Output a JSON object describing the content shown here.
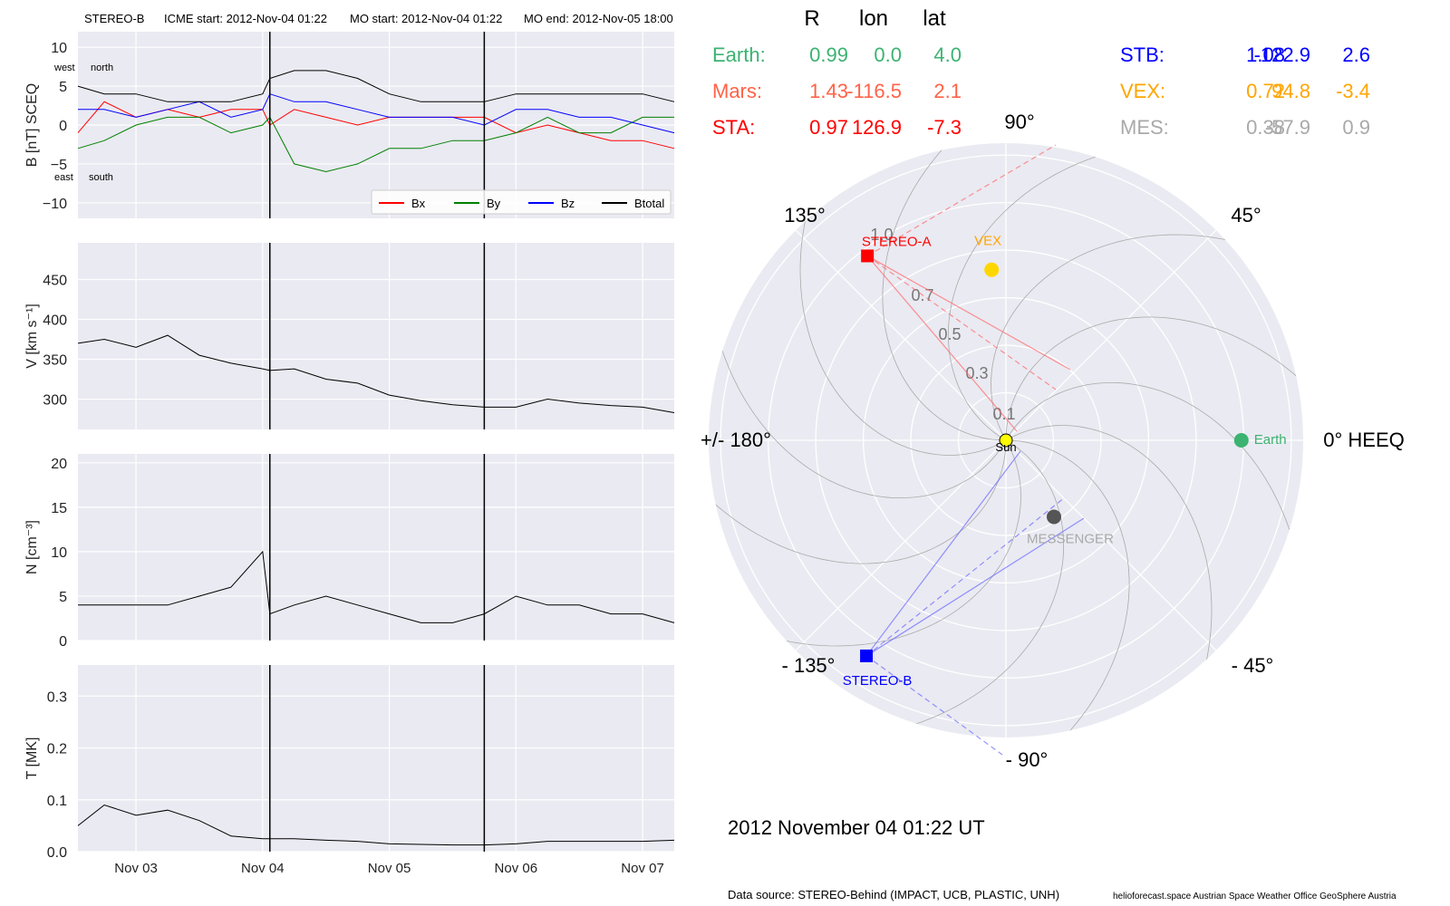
{
  "header": {
    "spacecraft": "STEREO-B",
    "icme_start": "ICME start: 2012-Nov-04 01:22",
    "mo_start": "MO start: 2012-Nov-04 01:22",
    "mo_end": "MO end: 2012-Nov-05 18:00"
  },
  "colors": {
    "earth": "#3cb371",
    "mars": "#ff6347",
    "sta": "#ff0000",
    "stb": "#0000ff",
    "vex": "#ffa500",
    "vex_marker": "#ffd700",
    "mes": "#a9a9a9",
    "mes_marker": "#555555",
    "panel_bg": "#eaeaf2",
    "bx": "#ff0000",
    "by": "#008000",
    "bz": "#0000ff",
    "btotal": "#000000"
  },
  "positions_table": {
    "headers": [
      "R",
      "lon",
      "lat"
    ],
    "rows": [
      {
        "name": "Earth:",
        "R": "0.99",
        "lon": "0.0",
        "lat": "4.0",
        "color_key": "earth"
      },
      {
        "name": "Mars:",
        "R": "1.43",
        "lon": "-116.5",
        "lat": "2.1",
        "color_key": "mars"
      },
      {
        "name": "STA:",
        "R": "0.97",
        "lon": "126.9",
        "lat": "-7.3",
        "color_key": "sta"
      },
      {
        "name": "STB:",
        "R": "1.08",
        "lon": "-122.9",
        "lat": "2.6",
        "color_key": "stb"
      },
      {
        "name": "VEX:",
        "R": "0.72",
        "lon": "94.8",
        "lat": "-3.4",
        "color_key": "vex"
      },
      {
        "name": "MES:",
        "R": "0.38",
        "lon": "-57.9",
        "lat": "0.9",
        "color_key": "mes"
      }
    ]
  },
  "polar": {
    "angle_labels": [
      "90°",
      "135°",
      "45°",
      "+/- 180°",
      "0° HEEQ",
      "- 135°",
      "- 45°",
      "- 90°"
    ],
    "radial_labels": [
      "0.1",
      "0.3",
      "0.5",
      "0.7",
      "1.0"
    ],
    "sun_label": "Sun",
    "bodies": [
      {
        "label": "Earth",
        "r": 0.99,
        "lon": 0.0,
        "marker": "circle",
        "color_key": "earth"
      },
      {
        "label": "VEX",
        "r": 0.72,
        "lon": 94.8,
        "marker": "circle",
        "color_key": "vex_marker",
        "label_color_key": "vex"
      },
      {
        "label": "MESSENGER",
        "r": 0.38,
        "lon": -57.9,
        "marker": "circle",
        "color_key": "mes_marker",
        "label_color_key": "mes"
      },
      {
        "label": "STEREO-A",
        "r": 0.97,
        "lon": 126.9,
        "marker": "square",
        "color_key": "sta"
      },
      {
        "label": "STEREO-B",
        "r": 1.08,
        "lon": -122.9,
        "marker": "square",
        "color_key": "stb"
      }
    ]
  },
  "date_label": "2012 November 04  01:22 UT",
  "footer": {
    "source": "Data source: STEREO-Behind (IMPACT, UCB, PLASTIC, UNH)",
    "credits": "helioforecast.space   Austrian Space Weather Office   GeoSphere Austria"
  },
  "chart_data": [
    {
      "type": "line",
      "id": "mag",
      "ylabel": "B [nT] SCEQ",
      "ylim": [
        -12,
        12
      ],
      "yticks": [
        10,
        5,
        0,
        -5,
        -10
      ],
      "ytick_labels": [
        "10",
        "5",
        "0",
        "−5",
        "−10"
      ],
      "corner_labels": {
        "top": [
          "west",
          "north"
        ],
        "bottom": [
          "east",
          "south"
        ]
      },
      "legend_placement": "lower-right",
      "x_range_days": [
        "2012-11-02 13:00",
        "2012-11-07 06:00"
      ],
      "event_lines": [
        "2012-11-04 01:22",
        "2012-11-05 18:00"
      ],
      "x": [
        "2012-11-02 13:00",
        "2012-11-02 18:00",
        "2012-11-03 00:00",
        "2012-11-03 06:00",
        "2012-11-03 12:00",
        "2012-11-03 18:00",
        "2012-11-04 00:00",
        "2012-11-04 01:22",
        "2012-11-04 06:00",
        "2012-11-04 12:00",
        "2012-11-04 18:00",
        "2012-11-05 00:00",
        "2012-11-05 06:00",
        "2012-11-05 12:00",
        "2012-11-05 18:00",
        "2012-11-06 00:00",
        "2012-11-06 06:00",
        "2012-11-06 12:00",
        "2012-11-06 18:00",
        "2012-11-07 00:00",
        "2012-11-07 06:00"
      ],
      "series": [
        {
          "name": "Bx",
          "color_key": "bx",
          "values": [
            -1,
            3,
            1,
            2,
            1,
            2,
            2,
            0,
            2,
            1,
            0,
            1,
            1,
            1,
            1,
            -1,
            0,
            -1,
            -2,
            -2,
            -3
          ]
        },
        {
          "name": "By",
          "color_key": "by",
          "values": [
            -3,
            -2,
            0,
            1,
            1,
            -1,
            0,
            1,
            -5,
            -6,
            -5,
            -3,
            -3,
            -2,
            -2,
            -1,
            1,
            -1,
            -1,
            1,
            1
          ]
        },
        {
          "name": "Bz",
          "color_key": "bz",
          "values": [
            2,
            2,
            1,
            2,
            3,
            1,
            2,
            4,
            3,
            3,
            2,
            1,
            1,
            1,
            0,
            2,
            2,
            1,
            1,
            0,
            -1
          ]
        },
        {
          "name": "Btotal",
          "color_key": "btotal",
          "values": [
            5,
            4,
            4,
            3,
            3,
            3,
            4,
            6,
            7,
            7,
            6,
            4,
            3,
            3,
            3,
            4,
            4,
            4,
            4,
            4,
            3
          ]
        }
      ]
    },
    {
      "type": "line",
      "id": "speed",
      "ylabel": "V [km s⁻¹]",
      "ylim": [
        262,
        496
      ],
      "yticks": [
        450,
        400,
        350,
        300
      ],
      "ytick_labels": [
        "450",
        "400",
        "350",
        "300"
      ],
      "x_range_days": [
        "2012-11-02 13:00",
        "2012-11-07 06:00"
      ],
      "event_lines": [
        "2012-11-04 01:22",
        "2012-11-05 18:00"
      ],
      "x": [
        "2012-11-02 13:00",
        "2012-11-02 18:00",
        "2012-11-03 00:00",
        "2012-11-03 06:00",
        "2012-11-03 12:00",
        "2012-11-03 18:00",
        "2012-11-04 00:00",
        "2012-11-04 01:22",
        "2012-11-04 06:00",
        "2012-11-04 12:00",
        "2012-11-04 18:00",
        "2012-11-05 00:00",
        "2012-11-05 06:00",
        "2012-11-05 12:00",
        "2012-11-05 18:00",
        "2012-11-06 00:00",
        "2012-11-06 06:00",
        "2012-11-06 12:00",
        "2012-11-06 18:00",
        "2012-11-07 00:00",
        "2012-11-07 06:00"
      ],
      "series": [
        {
          "name": "V",
          "values": [
            370,
            375,
            365,
            380,
            355,
            345,
            338,
            336,
            338,
            325,
            320,
            305,
            298,
            293,
            290,
            290,
            300,
            295,
            292,
            290,
            283
          ]
        }
      ]
    },
    {
      "type": "line",
      "id": "density",
      "ylabel": "N [cm⁻³]",
      "ylim": [
        0,
        21
      ],
      "yticks": [
        20,
        15,
        10,
        5,
        0
      ],
      "ytick_labels": [
        "20",
        "15",
        "10",
        "5",
        "0"
      ],
      "x_range_days": [
        "2012-11-02 13:00",
        "2012-11-07 06:00"
      ],
      "event_lines": [
        "2012-11-04 01:22",
        "2012-11-05 18:00"
      ],
      "x": [
        "2012-11-02 13:00",
        "2012-11-02 18:00",
        "2012-11-03 00:00",
        "2012-11-03 06:00",
        "2012-11-03 12:00",
        "2012-11-03 18:00",
        "2012-11-04 00:00",
        "2012-11-04 01:22",
        "2012-11-04 06:00",
        "2012-11-04 12:00",
        "2012-11-04 18:00",
        "2012-11-05 00:00",
        "2012-11-05 06:00",
        "2012-11-05 12:00",
        "2012-11-05 18:00",
        "2012-11-06 00:00",
        "2012-11-06 06:00",
        "2012-11-06 12:00",
        "2012-11-06 18:00",
        "2012-11-07 00:00",
        "2012-11-07 06:00"
      ],
      "series": [
        {
          "name": "N",
          "values": [
            4,
            4,
            4,
            4,
            5,
            6,
            10,
            3,
            4,
            5,
            4,
            3,
            2,
            2,
            3,
            5,
            4,
            4,
            3,
            3,
            2
          ]
        }
      ]
    },
    {
      "type": "line",
      "id": "temperature",
      "ylabel": "T [MK]",
      "ylim": [
        0,
        0.36
      ],
      "yticks": [
        0.3,
        0.2,
        0.1,
        0.0
      ],
      "ytick_labels": [
        "0.3",
        "0.2",
        "0.1",
        "0.0"
      ],
      "xticks": [
        "2012-11-03 00:00",
        "2012-11-04 00:00",
        "2012-11-05 00:00",
        "2012-11-06 00:00",
        "2012-11-07 00:00"
      ],
      "xtick_labels": [
        "Nov 03",
        "Nov 04",
        "Nov 05",
        "Nov 06",
        "Nov 07"
      ],
      "x_range_days": [
        "2012-11-02 13:00",
        "2012-11-07 06:00"
      ],
      "event_lines": [
        "2012-11-04 01:22",
        "2012-11-05 18:00"
      ],
      "x": [
        "2012-11-02 13:00",
        "2012-11-02 18:00",
        "2012-11-03 00:00",
        "2012-11-03 06:00",
        "2012-11-03 12:00",
        "2012-11-03 18:00",
        "2012-11-04 00:00",
        "2012-11-04 01:22",
        "2012-11-04 06:00",
        "2012-11-04 12:00",
        "2012-11-04 18:00",
        "2012-11-05 00:00",
        "2012-11-05 06:00",
        "2012-11-05 12:00",
        "2012-11-05 18:00",
        "2012-11-06 00:00",
        "2012-11-06 06:00",
        "2012-11-06 12:00",
        "2012-11-06 18:00",
        "2012-11-07 00:00",
        "2012-11-07 06:00"
      ],
      "series": [
        {
          "name": "T",
          "values": [
            0.05,
            0.09,
            0.07,
            0.08,
            0.06,
            0.03,
            0.025,
            0.025,
            0.025,
            0.022,
            0.02,
            0.015,
            0.014,
            0.013,
            0.013,
            0.015,
            0.02,
            0.02,
            0.02,
            0.02,
            0.022
          ]
        }
      ]
    }
  ]
}
